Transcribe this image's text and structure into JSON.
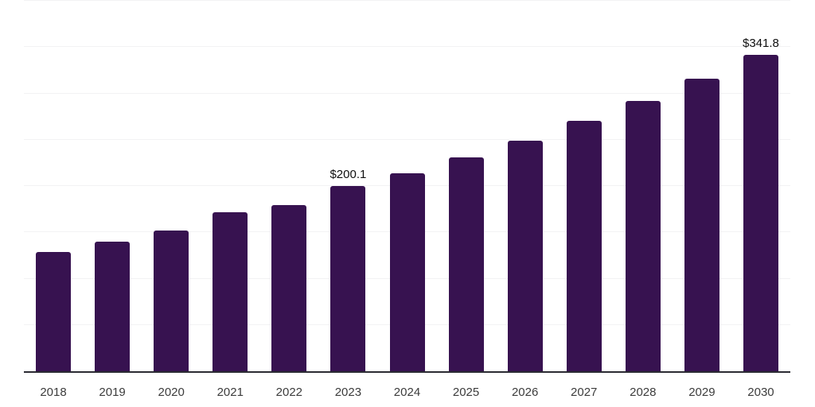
{
  "chart_data": {
    "type": "bar",
    "title": "",
    "xlabel": "",
    "ylabel": "",
    "categories": [
      "2018",
      "2019",
      "2020",
      "2021",
      "2022",
      "2023",
      "2024",
      "2025",
      "2026",
      "2027",
      "2028",
      "2029",
      "2030"
    ],
    "values": [
      129,
      139.5,
      152,
      171.5,
      179.5,
      200.1,
      214,
      231,
      249,
      270,
      292,
      316,
      341.8
    ],
    "data_labels": [
      {
        "category": "2023",
        "text": "$200.1"
      },
      {
        "category": "2030",
        "text": "$341.8"
      }
    ],
    "ylim": [
      0,
      400
    ],
    "gridline_step": 50,
    "grid": "horizontal",
    "legend_position": "none",
    "y_axis_tick_labels_visible": false,
    "colors": {
      "bar": "#371250",
      "axis_line": "#2b2b33",
      "gridline": "#f2f2f4",
      "x_tick_label": "#3c3c3c",
      "data_label": "#0f0f0f",
      "background": "#ffffff"
    }
  }
}
